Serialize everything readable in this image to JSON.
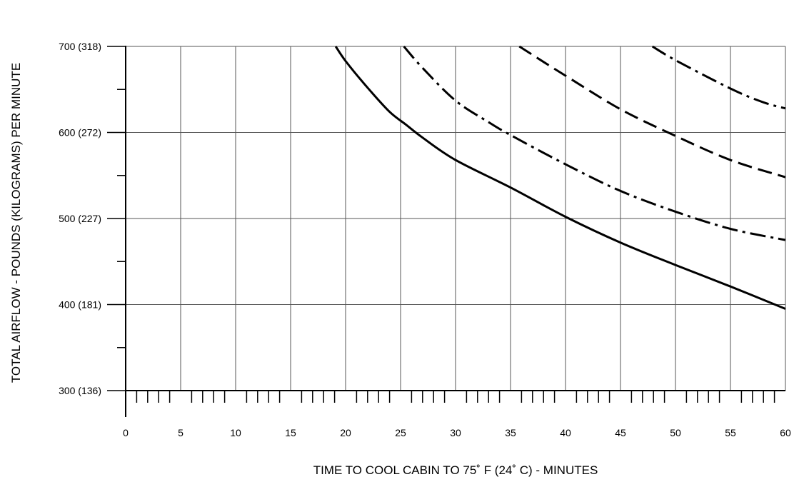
{
  "chart_data": {
    "type": "line",
    "xlabel": "TIME TO COOL CABIN  TO 75˚ F (24˚ C) - MINUTES",
    "ylabel": "TOTAL AIRFLOW - POUNDS (KILOGRAMS) PER MINUTE",
    "xlim": [
      0,
      60
    ],
    "ylim": [
      300,
      700
    ],
    "x_ticks": [
      0,
      5,
      10,
      15,
      20,
      25,
      30,
      35,
      40,
      45,
      50,
      55,
      60
    ],
    "x_tick_labels": [
      "0",
      "5",
      "10",
      "15",
      "20",
      "25",
      "30",
      "35",
      "40",
      "45",
      "50",
      "55",
      "60"
    ],
    "x_minor_step": 1,
    "y_ticks": [
      300,
      400,
      500,
      600,
      700
    ],
    "y_tick_labels": [
      "300 (136)",
      "400 (181)",
      "500 (227)",
      "600 (272)",
      "700 (318)"
    ],
    "y_minor_ticks": [
      350,
      450,
      550,
      650
    ],
    "grid": true,
    "series": [
      {
        "style": "solid",
        "x": [
          19.1,
          20,
          22,
          24,
          25.5,
          27,
          30,
          35,
          40,
          45,
          50,
          55,
          60
        ],
        "y": [
          700,
          683,
          652,
          624,
          609,
          594,
          568,
          536,
          502,
          472,
          446,
          421,
          395
        ]
      },
      {
        "style": "dash-dot",
        "x": [
          25.3,
          27,
          30,
          33,
          35,
          40,
          45,
          50,
          55,
          60
        ],
        "y": [
          700,
          675,
          637,
          612,
          597,
          563,
          532,
          508,
          488,
          475
        ]
      },
      {
        "style": "dash",
        "x": [
          35.8,
          38,
          40,
          45,
          50,
          55,
          60
        ],
        "y": [
          700,
          682,
          666,
          627,
          596,
          568,
          548
        ]
      },
      {
        "style": "dash-dot",
        "x": [
          47.9,
          50,
          55,
          58,
          60
        ],
        "y": [
          700,
          684,
          651,
          635,
          628
        ]
      }
    ]
  }
}
